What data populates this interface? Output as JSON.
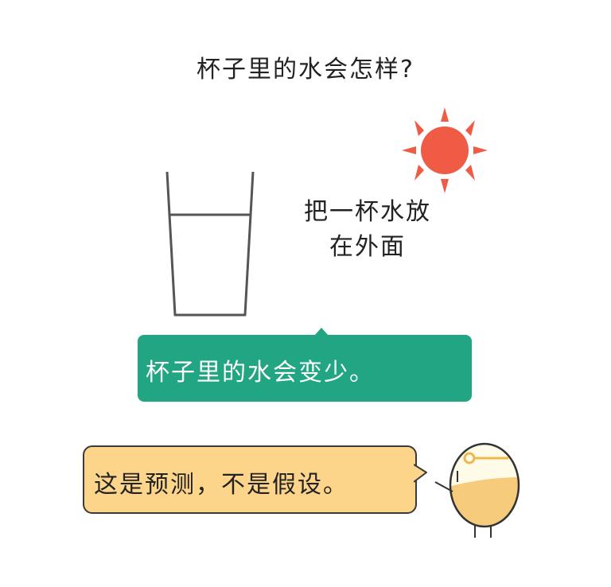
{
  "title": "杯子里的水会怎样?",
  "caption": {
    "line1": "把一杯水放",
    "line2": "在外面"
  },
  "answer_bubble": {
    "text": "杯子里的水会变少。",
    "color": "#21a582"
  },
  "speech_bubble": {
    "text": "这是预测，不是假设。",
    "color": "#fdd58a"
  },
  "colors": {
    "sun": "#ef5b45",
    "glass_outline": "#555555",
    "egg_fill": "#fffbe9",
    "egg_yolk": "#f6cc7c"
  },
  "icons": {
    "sun": "sun-icon",
    "glass": "water-glass-icon",
    "character": "egg-character"
  }
}
